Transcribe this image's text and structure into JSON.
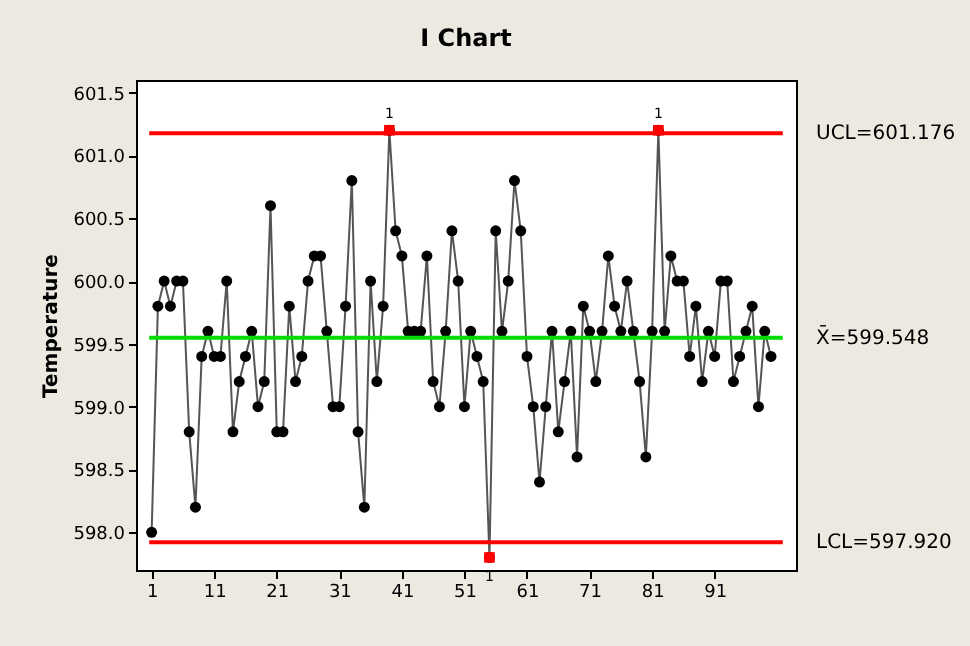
{
  "chart_data": {
    "type": "line",
    "title": "I Chart",
    "ylabel": "Temperature",
    "x": [
      1,
      2,
      3,
      4,
      5,
      6,
      7,
      8,
      9,
      10,
      11,
      12,
      13,
      14,
      15,
      16,
      17,
      18,
      19,
      20,
      21,
      22,
      23,
      24,
      25,
      26,
      27,
      28,
      29,
      30,
      31,
      32,
      33,
      34,
      35,
      36,
      37,
      38,
      39,
      40,
      41,
      42,
      43,
      44,
      45,
      46,
      47,
      48,
      49,
      50,
      51,
      52,
      53,
      54,
      55,
      56,
      57,
      58,
      59,
      60,
      61,
      62,
      63,
      64,
      65,
      66,
      67,
      68,
      69,
      70,
      71,
      72,
      73,
      74,
      75,
      76,
      77,
      78,
      79,
      80,
      81,
      82,
      83,
      84,
      85,
      86,
      87,
      88,
      89,
      90,
      91,
      92,
      93,
      94,
      95,
      96,
      97,
      98,
      99,
      100
    ],
    "series": [
      {
        "color": "#000000",
        "marker": "circle",
        "values": [
          598.0,
          599.8,
          600.0,
          599.8,
          600.0,
          600.0,
          598.8,
          598.2,
          599.4,
          599.6,
          599.4,
          599.4,
          600.0,
          598.8,
          599.2,
          599.4,
          599.6,
          599.0,
          599.2,
          600.6,
          598.8,
          598.8,
          599.8,
          599.2,
          599.4,
          600.0,
          600.2,
          600.2,
          599.6,
          599.0,
          599.0,
          599.8,
          600.8,
          598.8,
          598.2,
          600.0,
          599.2,
          599.8,
          601.2,
          600.4,
          600.2,
          599.6,
          599.6,
          599.6,
          600.2,
          599.2,
          599.0,
          599.6,
          600.4,
          600.0,
          599.0,
          599.6,
          599.4,
          599.2,
          597.8,
          600.4,
          599.6,
          600.0,
          600.8,
          600.4,
          599.4,
          599.0,
          598.4,
          599.0,
          599.6,
          598.8,
          599.2,
          599.6,
          598.6,
          599.8,
          599.6,
          599.2,
          599.6,
          600.2,
          599.8,
          599.6,
          600.0,
          599.6,
          599.2,
          598.6,
          599.6,
          601.2,
          599.6,
          600.2,
          600.0,
          600.0,
          599.4,
          599.8,
          599.2,
          599.6,
          599.4,
          600.0,
          600.0,
          599.2,
          599.4,
          599.6,
          599.8,
          599.0,
          599.6,
          599.4
        ]
      },
      {
        "type": "scatter",
        "color": "#ff0000",
        "marker": "square",
        "x": [
          39,
          55,
          82
        ],
        "values": [
          601.2,
          597.8,
          601.2
        ]
      }
    ],
    "xlim": [
      -1.5,
      104
    ],
    "xticks": [
      1,
      11,
      21,
      31,
      41,
      51,
      61,
      71,
      81,
      91
    ],
    "ylim": [
      597.7,
      601.6
    ],
    "yticks": [
      {
        "value": 598,
        "label": "598.0"
      },
      {
        "value": 598.5,
        "label": "598.5"
      },
      {
        "value": 599,
        "label": "599.0"
      },
      {
        "value": 599.5,
        "label": "599.5"
      },
      {
        "value": 600,
        "label": "600.0"
      },
      {
        "value": 600.5,
        "label": "600.5"
      },
      {
        "value": 601,
        "label": "601.0"
      },
      {
        "value": 601.5,
        "label": "601.5"
      }
    ],
    "ref_lines": [
      {
        "axis": "y",
        "value": 601.176,
        "label": "UCL=601.176",
        "color": "#ff0000"
      },
      {
        "axis": "y",
        "value": 599.548,
        "label": "X̄=599.548",
        "color": "#00dd00"
      },
      {
        "axis": "y",
        "value": 597.92,
        "label": "LCL=597.920",
        "color": "#ff0000"
      }
    ],
    "annotations": [
      {
        "text": "1",
        "x": 39,
        "y": 601.2
      },
      {
        "text": "1",
        "x": 55,
        "y": 597.8
      },
      {
        "text": "1",
        "x": 82,
        "y": 601.2
      }
    ],
    "grid": false,
    "line_style": "solid"
  }
}
